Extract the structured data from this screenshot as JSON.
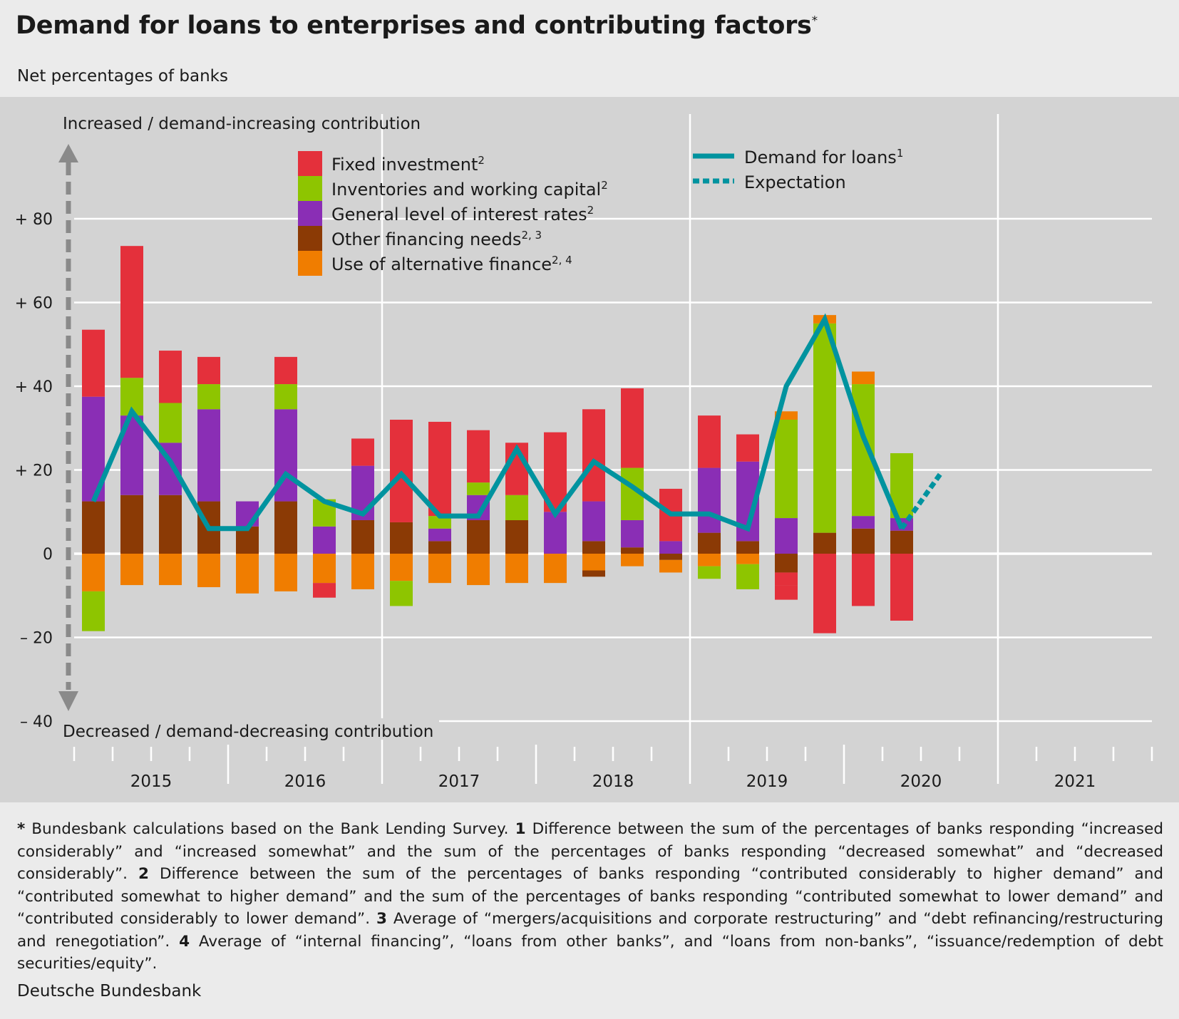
{
  "title": "Demand for loans to enterprises and contributing factors",
  "title_marker": "*",
  "subtitle": "Net percentages of banks",
  "axis_top_note": "Increased / demand-increasing contribution",
  "axis_bottom_note": "Decreased / demand-decreasing contribution",
  "source": "Deutsche Bundesbank",
  "notes": [
    {
      "mark": "*",
      "text": " Bundesbank calculations based on the Bank Lending Survey. "
    },
    {
      "mark": "1",
      "text": " Difference between the sum of the percentages of banks responding “increased considerably” and “increased somewhat” and the sum of the percentages of banks responding “decreased somewhat” and “decreased considerably”. "
    },
    {
      "mark": "2",
      "text": " Difference between the sum of the percentages of banks responding “contributed considerably to higher demand” and “contributed somewhat to higher demand” and the sum of the percentages of banks responding “contributed some­what to lower demand” and “contributed considerably to lower demand”. "
    },
    {
      "mark": "3",
      "text": " Average of “mergers/acquisitions and corporate restructu­ring” and “debt refinancing/restructuring and renegotiation”. "
    },
    {
      "mark": "4",
      "text": " Average of “internal financing”, “loans from other banks”, and “loans from non-banks”, “issuance/redemption of debt securities/equity”."
    }
  ],
  "chart_data": {
    "type": "bar",
    "stacked": true,
    "ylim": [
      -40,
      80
    ],
    "y_ticks": [
      {
        "value": 80,
        "label": "+ 80"
      },
      {
        "value": 60,
        "label": "+ 60"
      },
      {
        "value": 40,
        "label": "+ 40"
      },
      {
        "value": 20,
        "label": "+ 20"
      },
      {
        "value": 0,
        "label": "0"
      },
      {
        "value": -20,
        "label": "– 20"
      },
      {
        "value": -40,
        "label": "– 40"
      }
    ],
    "years": [
      "2015",
      "2016",
      "2017",
      "2018",
      "2019",
      "2020",
      "2021"
    ],
    "quarters": [
      "2015 Q1",
      "2015 Q2",
      "2015 Q3",
      "2015 Q4",
      "2016 Q1",
      "2016 Q2",
      "2016 Q3",
      "2016 Q4",
      "2017 Q1",
      "2017 Q2",
      "2017 Q3",
      "2017 Q4",
      "2018 Q1",
      "2018 Q2",
      "2018 Q3",
      "2018 Q4",
      "2019 Q1",
      "2019 Q2",
      "2019 Q3",
      "2019 Q4",
      "2020 Q1",
      "2020 Q2",
      "2020 Q3",
      "2020 Q4",
      "2021 Q1"
    ],
    "series": [
      {
        "name": "Other financing needs",
        "superscript": "2, 3",
        "color": "#8b3a05",
        "values": [
          12.5,
          14,
          14,
          12.5,
          6.5,
          12.5,
          0,
          8,
          7.5,
          3,
          8,
          8,
          0,
          3,
          1.5,
          -1.5,
          5,
          3,
          -4.5,
          5,
          6,
          5.5,
          null,
          null,
          null
        ]
      },
      {
        "name": "General level of interest rates",
        "superscript": "2",
        "color": "#8a2eb5",
        "values": [
          25,
          19,
          12.5,
          22,
          6,
          22,
          6.5,
          13,
          0,
          3,
          6,
          0,
          10,
          9.5,
          6.5,
          3,
          15.5,
          19,
          8.5,
          0,
          3,
          3,
          null,
          null,
          null
        ]
      },
      {
        "name": "Inventories and working capital",
        "superscript": "2",
        "color": "#8ec500",
        "values": [
          0,
          9,
          9.5,
          6,
          0,
          6,
          6.5,
          0,
          0,
          3,
          3,
          6,
          0,
          0,
          12.5,
          0,
          0,
          0,
          23.5,
          50,
          31.5,
          15.5,
          null,
          null,
          null
        ]
      },
      {
        "name": "Fixed investment",
        "superscript": "2",
        "color": "#e4303b",
        "values": [
          16,
          31.5,
          12.5,
          6.5,
          0,
          6.5,
          0,
          6.5,
          24.5,
          22.5,
          12.5,
          12.5,
          19,
          22,
          19,
          12.5,
          12.5,
          6.5,
          -3,
          -19,
          -12.5,
          -16,
          null,
          null,
          null
        ]
      },
      {
        "name": "Use of alternative finance",
        "superscript": "2, 4",
        "color": "#f07d00",
        "values": [
          -9,
          -7.5,
          -7.5,
          -8,
          -9.5,
          -9,
          -7,
          -8.5,
          -6.5,
          -7,
          -7.5,
          -7,
          -7,
          -4,
          -3,
          -3,
          -3,
          -2.5,
          2,
          2,
          3,
          0,
          null,
          null,
          null
        ]
      }
    ],
    "extra_negative": [
      {
        "series": "Inventories and working capital",
        "index": 0,
        "value": -9.5
      },
      {
        "series": "Fixed investment",
        "index": 6,
        "value": -3.5
      },
      {
        "series": "Inventories and working capital",
        "index": 8,
        "value": -6
      },
      {
        "series": "Other financing needs",
        "index": 13,
        "value": -1.5
      },
      {
        "series": "Inventories and working capital",
        "index": 16,
        "value": -3
      },
      {
        "series": "Inventories and working capital",
        "index": 17,
        "value": -6
      },
      {
        "series": "Fixed investment",
        "index": 18,
        "value": -3.5
      }
    ],
    "lines": [
      {
        "name": "Demand for loans",
        "superscript": "1",
        "color": "#00939f",
        "style": "solid",
        "values": [
          12.5,
          34,
          22,
          6,
          6,
          19,
          12.5,
          9.5,
          19,
          9,
          9,
          25,
          9.5,
          22,
          16,
          9.5,
          9.5,
          6,
          40,
          56,
          28,
          6,
          null,
          null,
          null
        ]
      },
      {
        "name": "Expectation",
        "superscript": "",
        "color": "#00939f",
        "style": "dotted",
        "from_index": 21,
        "values_from": [
          6,
          19
        ]
      }
    ]
  }
}
